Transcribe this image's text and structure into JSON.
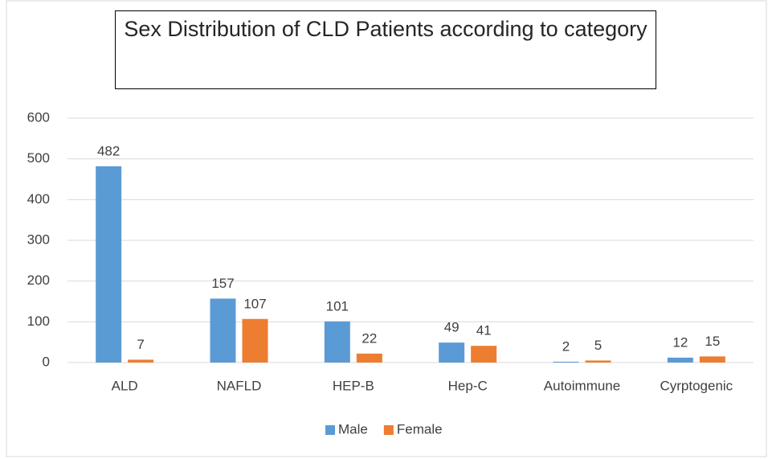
{
  "chart_data": {
    "type": "bar",
    "title": "Sex Distribution of CLD Patients according to category",
    "categories": [
      "ALD",
      "NAFLD",
      "HEP-B",
      "Hep-C",
      "Autoimmune",
      "Cyrptogenic"
    ],
    "series": [
      {
        "name": "Male",
        "color": "#5b9bd5",
        "values": [
          482,
          157,
          101,
          49,
          2,
          12
        ]
      },
      {
        "name": "Female",
        "color": "#ed7d31",
        "values": [
          7,
          107,
          22,
          41,
          5,
          15
        ]
      }
    ],
    "ylim": [
      0,
      600
    ],
    "yticks": [
      0,
      100,
      200,
      300,
      400,
      500,
      600
    ],
    "grid": true,
    "legend": "bottom"
  }
}
